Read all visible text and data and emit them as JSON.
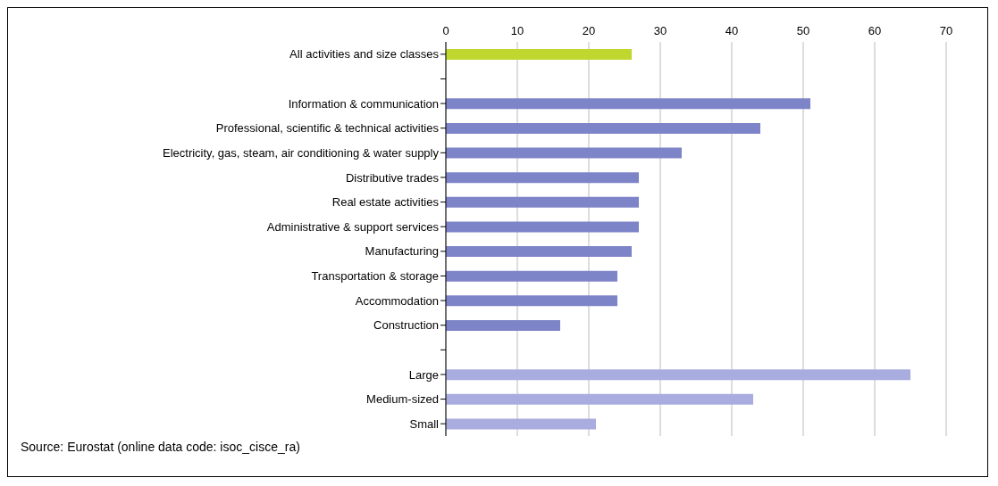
{
  "chart_data": {
    "type": "bar",
    "orientation": "horizontal",
    "categories": [
      "All activities and size classes",
      null,
      "Information & communication",
      "Professional, scientific & technical activities",
      "Electricity, gas, steam, air conditioning & water supply",
      "Distributive trades",
      "Real estate activities",
      "Administrative & support services",
      "Manufacturing",
      "Transportation & storage",
      "Accommodation",
      "Construction",
      null,
      "Large",
      "Medium-sized",
      "Small"
    ],
    "values": [
      26,
      null,
      51,
      44,
      33,
      27,
      27,
      27,
      26,
      24,
      24,
      16,
      null,
      65,
      43,
      21
    ],
    "colors": [
      "#c0d72f",
      null,
      "#7e84c8",
      "#7e84c8",
      "#7e84c8",
      "#7e84c8",
      "#7e84c8",
      "#7e84c8",
      "#7e84c8",
      "#7e84c8",
      "#7e84c8",
      "#7e84c8",
      null,
      "#a9acdf",
      "#a9acdf",
      "#a9acdf"
    ],
    "xlim": [
      0,
      70
    ],
    "xticks": [
      0,
      10,
      20,
      30,
      40,
      50,
      60,
      70
    ],
    "grid": "x",
    "annotations": [
      "Source: Eurostat (online data code: isoc_cisce_ra)"
    ]
  }
}
